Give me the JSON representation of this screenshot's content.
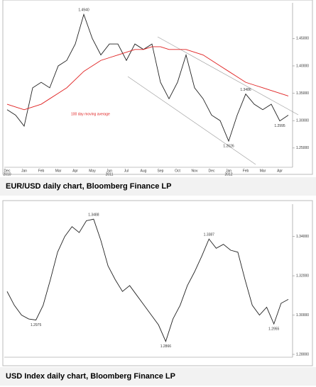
{
  "chart_data": [
    {
      "type": "line",
      "caption": "EUR/USD daily chart, Bloomberg Finance LP",
      "annotation": "100 day moving average",
      "categories": [
        "Dec",
        null,
        "Jan",
        null,
        "Feb",
        null,
        "Mar",
        null,
        "Apr",
        null,
        "May",
        null,
        "Jun",
        null,
        "Jul",
        null,
        "Aug",
        null,
        "Sep",
        null,
        "Oct",
        null,
        "Nov",
        null,
        "Dec",
        null,
        "Jan",
        null,
        "Feb",
        null,
        "Mar",
        null,
        "Apr",
        null
      ],
      "year_labels": [
        "2010",
        null,
        null,
        null,
        null,
        null,
        null,
        null,
        null,
        null,
        null,
        null,
        "2011",
        null,
        null,
        null,
        null,
        null,
        null,
        null,
        null,
        null,
        null,
        null,
        null,
        null,
        "2012",
        null,
        null,
        null,
        null,
        null,
        null,
        null
      ],
      "series": [
        {
          "color": "#222222",
          "values": [
            1.32,
            1.31,
            1.29,
            1.36,
            1.37,
            1.36,
            1.4,
            1.41,
            1.44,
            1.494,
            1.45,
            1.42,
            1.44,
            1.44,
            1.41,
            1.44,
            1.43,
            1.44,
            1.37,
            1.34,
            1.37,
            1.42,
            1.36,
            1.34,
            1.31,
            1.3,
            1.2626,
            1.31,
            1.3486,
            1.33,
            1.32,
            1.33,
            1.2995,
            1.31
          ],
          "value_labels": [
            null,
            null,
            null,
            null,
            null,
            null,
            null,
            null,
            null,
            "1.4940",
            null,
            null,
            null,
            null,
            null,
            null,
            null,
            null,
            null,
            null,
            null,
            null,
            null,
            null,
            null,
            null,
            "1.2626",
            null,
            "1.3486",
            null,
            null,
            null,
            "1.2995",
            null
          ]
        },
        {
          "color": "#e02020",
          "values": [
            1.33,
            1.325,
            1.32,
            1.325,
            1.33,
            1.34,
            1.35,
            1.36,
            1.375,
            1.39,
            1.4,
            1.41,
            1.415,
            1.42,
            1.425,
            1.43,
            1.43,
            1.435,
            1.435,
            1.43,
            1.43,
            1.43,
            1.425,
            1.42,
            1.41,
            1.4,
            1.39,
            1.38,
            1.37,
            1.365,
            1.36,
            1.355,
            1.35,
            1.345
          ]
        }
      ],
      "ylim": [
        1.22,
        1.51
      ],
      "yticks": [
        {
          "value": 1.25,
          "label": "1.25000"
        },
        {
          "value": 1.3,
          "label": "1.30000"
        },
        {
          "value": 1.35,
          "label": "1.35000"
        },
        {
          "value": 1.4,
          "label": "1.40000"
        },
        {
          "value": 1.45,
          "label": "1.45000"
        }
      ]
    },
    {
      "type": "line",
      "caption": "USD Index daily chart, Bloomberg Finance LP",
      "series": [
        {
          "color": "#222222",
          "values": [
            1.312,
            1.305,
            1.3,
            1.298,
            1.2975,
            1.305,
            1.318,
            1.332,
            1.34,
            1.345,
            1.342,
            1.348,
            1.3488,
            1.338,
            1.325,
            1.318,
            1.312,
            1.315,
            1.31,
            1.305,
            1.3,
            1.295,
            1.2866,
            1.298,
            1.305,
            1.315,
            1.322,
            1.33,
            1.3387,
            1.334,
            1.336,
            1.333,
            1.332,
            1.318,
            1.305,
            1.3,
            1.304,
            1.2955,
            1.306,
            1.308
          ],
          "value_labels": [
            null,
            null,
            null,
            null,
            "1.2975",
            null,
            null,
            null,
            null,
            null,
            null,
            null,
            "1.3488",
            null,
            null,
            null,
            null,
            null,
            null,
            null,
            null,
            null,
            "1.2866",
            null,
            null,
            null,
            null,
            null,
            "1.3387",
            null,
            null,
            null,
            null,
            null,
            null,
            null,
            null,
            "1.2955",
            null,
            null
          ]
        }
      ],
      "ylim": [
        1.28,
        1.355
      ],
      "yticks": [
        {
          "value": 1.28,
          "label": "1.28000"
        },
        {
          "value": 1.3,
          "label": "1.30000"
        },
        {
          "value": 1.32,
          "label": "1.32000"
        },
        {
          "value": 1.34,
          "label": "1.34000"
        }
      ]
    }
  ]
}
